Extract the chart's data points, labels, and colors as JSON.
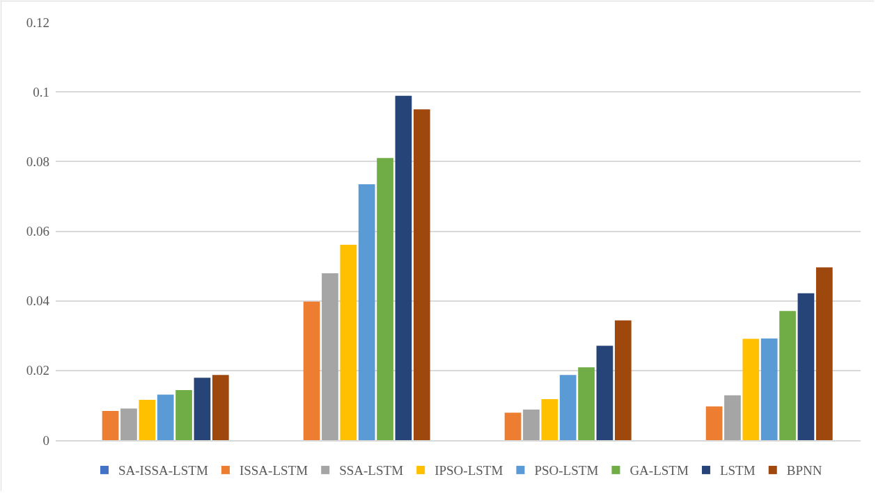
{
  "chart_data": {
    "type": "bar",
    "categories": [
      null,
      null,
      null,
      null
    ],
    "series": [
      {
        "name": "SA-ISSA-LSTM",
        "color": "#4472c4",
        "values": [
          0,
          0,
          0,
          0
        ]
      },
      {
        "name": "ISSA-LSTM",
        "color": "#ed7d31",
        "values": [
          0.0084,
          0.0398,
          0.0079,
          0.0097
        ]
      },
      {
        "name": "SSA-LSTM",
        "color": "#a5a5a5",
        "values": [
          0.0091,
          0.0479,
          0.0088,
          0.0129
        ]
      },
      {
        "name": "IPSO-LSTM",
        "color": "#ffc000",
        "values": [
          0.0116,
          0.0561,
          0.0118,
          0.0291
        ]
      },
      {
        "name": "PSO-LSTM",
        "color": "#5b9bd5",
        "values": [
          0.0131,
          0.0735,
          0.0187,
          0.0292
        ]
      },
      {
        "name": "GA-LSTM",
        "color": "#70ad47",
        "values": [
          0.0144,
          0.081,
          0.0209,
          0.0371
        ]
      },
      {
        "name": "LSTM",
        "color": "#264478",
        "values": [
          0.0179,
          0.0989,
          0.0271,
          0.0422
        ]
      },
      {
        "name": "BPNN",
        "color": "#9e480e",
        "values": [
          0.0187,
          0.095,
          0.0344,
          0.0496
        ]
      }
    ],
    "ylim": [
      0,
      0.12
    ],
    "yticks": [
      0,
      0.02,
      0.04,
      0.06,
      0.08,
      0.1,
      0.12
    ],
    "grid": "y",
    "legend": "bottom",
    "tick_labels": "y"
  }
}
